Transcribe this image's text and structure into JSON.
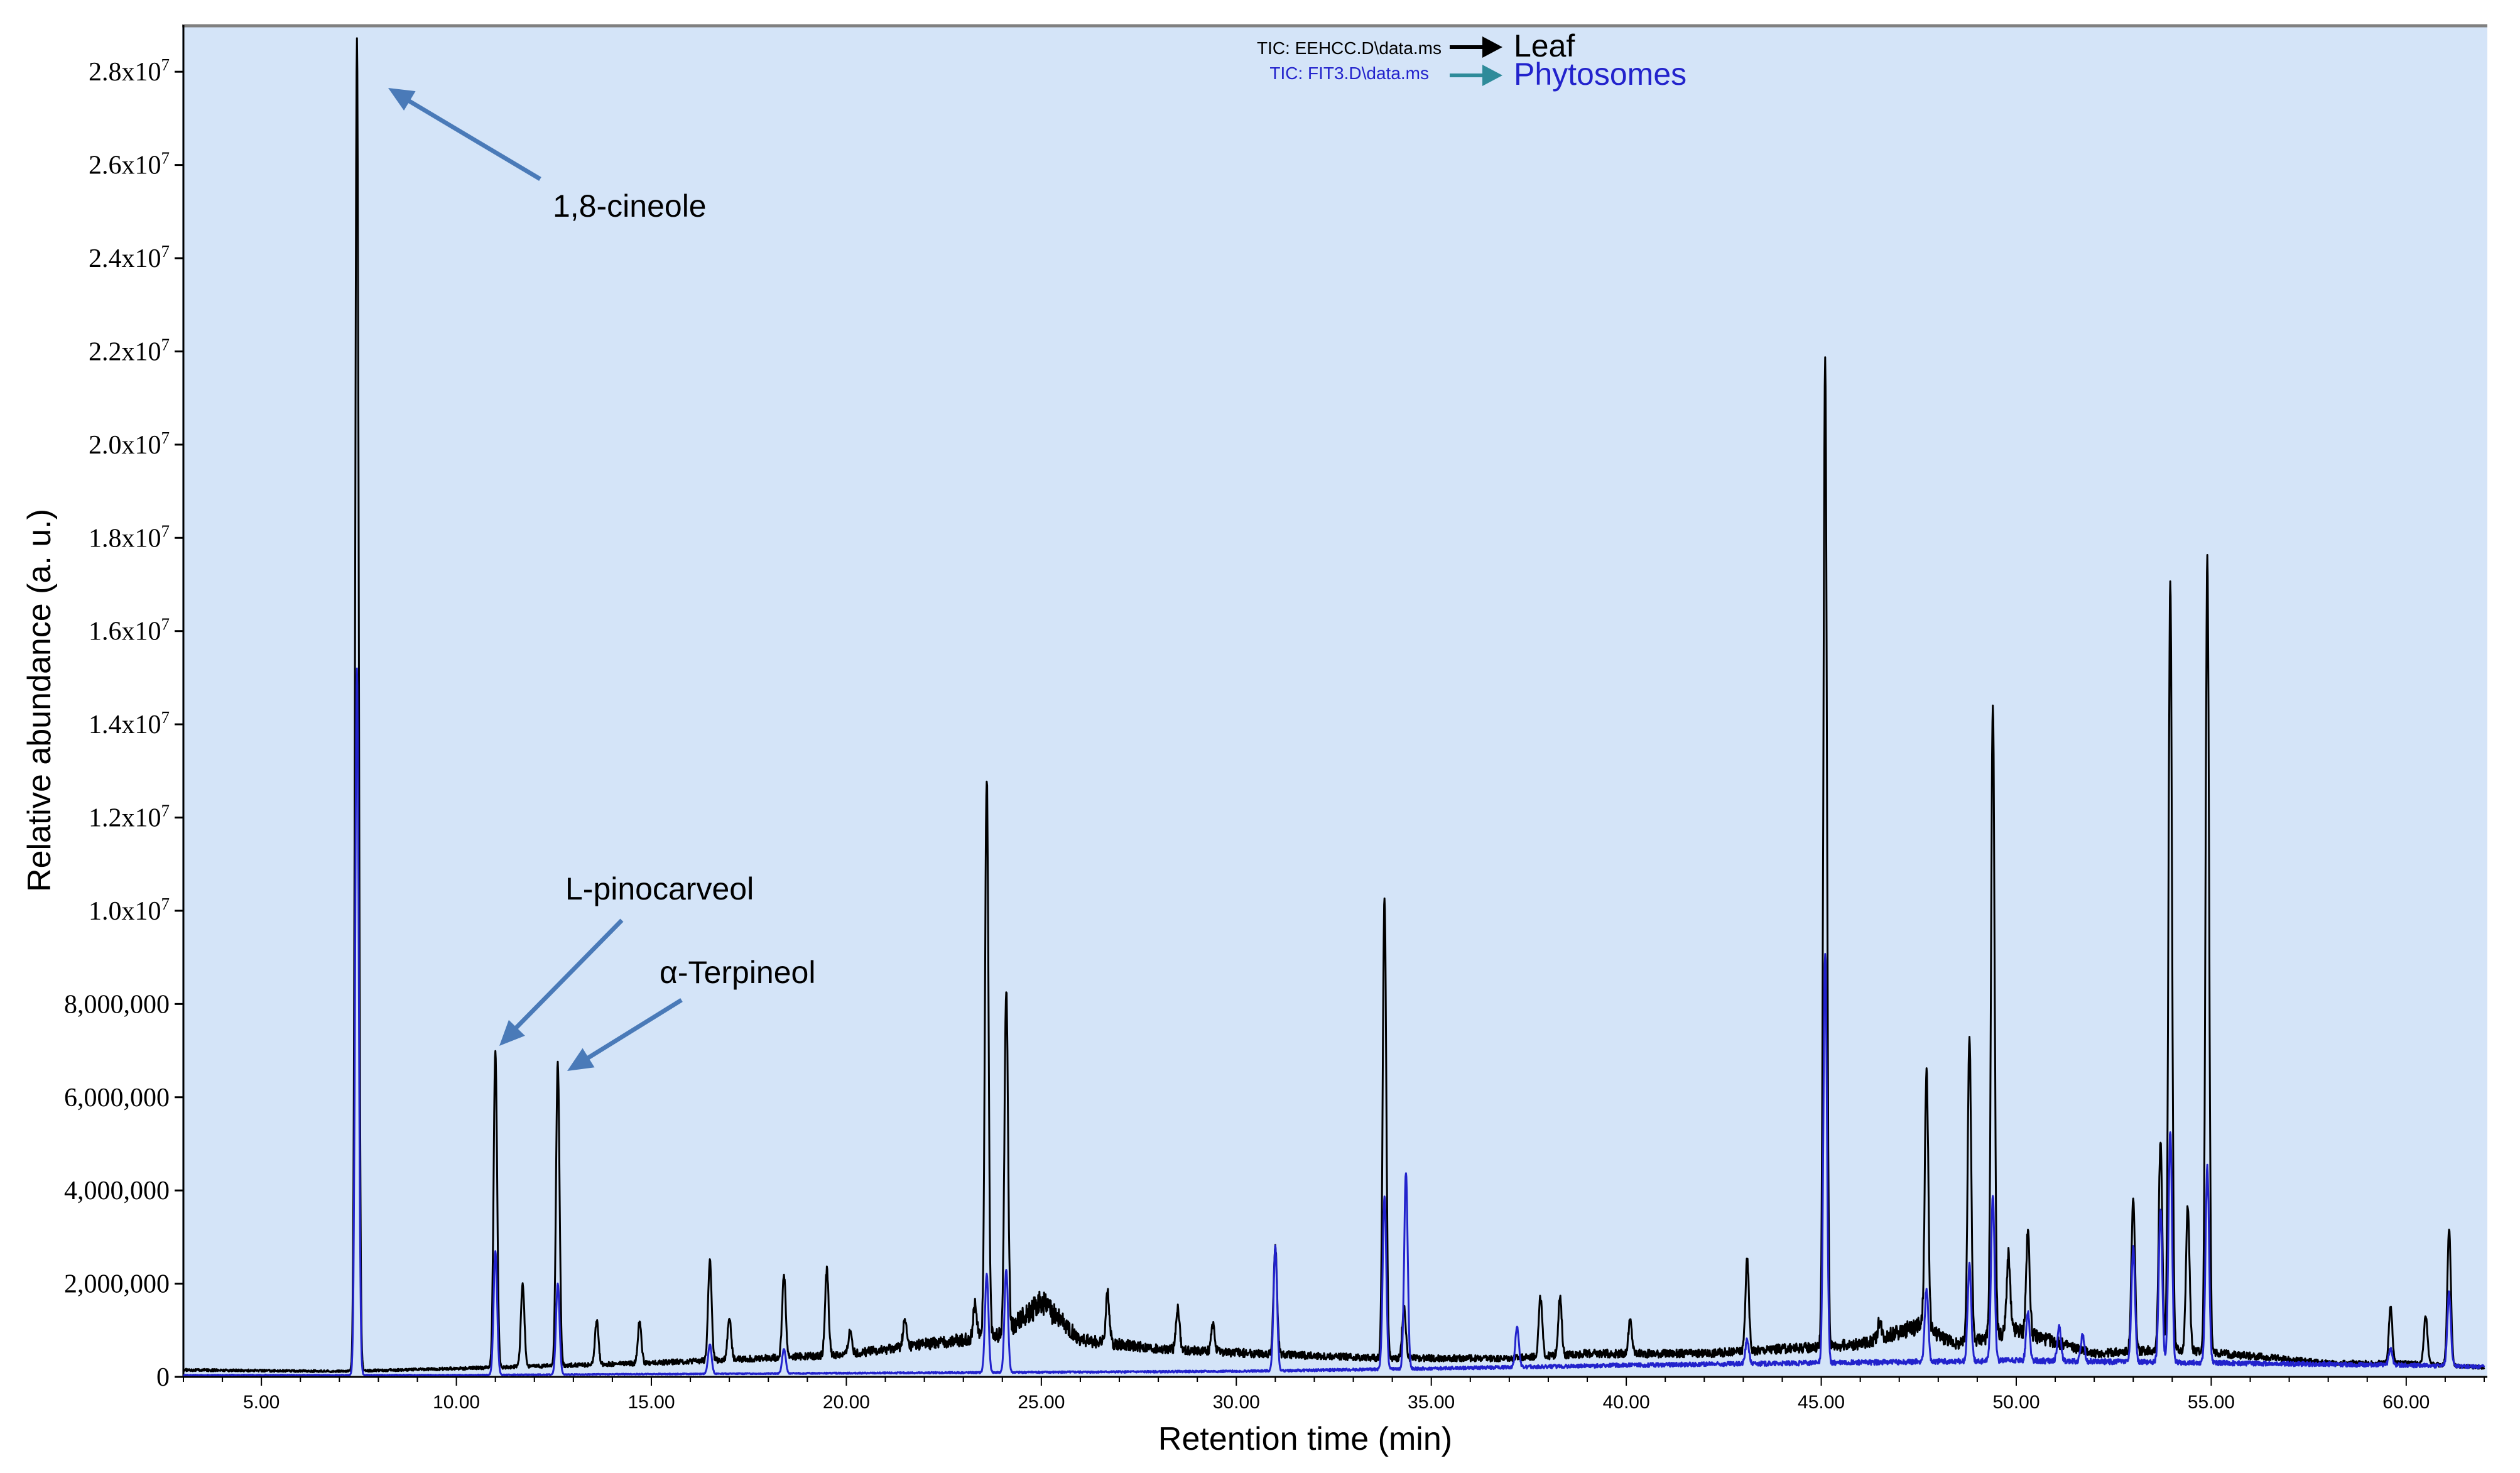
{
  "chart_data": {
    "type": "line",
    "xlabel": "Retention time (min)",
    "ylabel": "Relative abundance (a. u.)",
    "xlim": [
      3.0,
      62.0
    ],
    "ylim": [
      0,
      29000000
    ],
    "grid": false,
    "legend_position": "top-center",
    "background_color": "#d4e4f8",
    "x_ticks": [
      5,
      10,
      15,
      20,
      25,
      30,
      35,
      40,
      45,
      50,
      55,
      60
    ],
    "x_tick_labels": [
      "5.00",
      "10.00",
      "15.00",
      "20.00",
      "25.00",
      "30.00",
      "35.00",
      "40.00",
      "45.00",
      "50.00",
      "55.00",
      "60.00"
    ],
    "y_ticks": [
      {
        "value": 0,
        "base": "0",
        "exp": ""
      },
      {
        "value": 2000000,
        "base": "2,000,000",
        "exp": ""
      },
      {
        "value": 4000000,
        "base": "4,000,000",
        "exp": ""
      },
      {
        "value": 6000000,
        "base": "6,000,000",
        "exp": ""
      },
      {
        "value": 8000000,
        "base": "8,000,000",
        "exp": ""
      },
      {
        "value": 10000000,
        "base": "1.0x10",
        "exp": "7"
      },
      {
        "value": 12000000,
        "base": "1.2x10",
        "exp": "7"
      },
      {
        "value": 14000000,
        "base": "1.4x10",
        "exp": "7"
      },
      {
        "value": 16000000,
        "base": "1.6x10",
        "exp": "7"
      },
      {
        "value": 18000000,
        "base": "1.8x10",
        "exp": "7"
      },
      {
        "value": 20000000,
        "base": "2.0x10",
        "exp": "7"
      },
      {
        "value": 22000000,
        "base": "2.2x10",
        "exp": "7"
      },
      {
        "value": 24000000,
        "base": "2.4x10",
        "exp": "7"
      },
      {
        "value": 26000000,
        "base": "2.6x10",
        "exp": "7"
      },
      {
        "value": 28000000,
        "base": "2.8x10",
        "exp": "7"
      }
    ],
    "legend": [
      {
        "file_label": "TIC: EEHCC.D\\data.ms",
        "name": "Leaf",
        "color": "#000000",
        "arrow_color": "#000000"
      },
      {
        "file_label": "TIC: FIT3.D\\data.ms",
        "name": "Phytosomes",
        "color": "#2222cc",
        "arrow_color": "#2e8b9a"
      }
    ],
    "annotations": [
      {
        "text": "1,8-cineole",
        "x": 7.5,
        "y": 28700000
      },
      {
        "text": "L-pinocarveol",
        "x": 10.95,
        "y": 7050000
      },
      {
        "text": "α-Terpineol",
        "x": 12.6,
        "y": 6800000
      }
    ],
    "series": [
      {
        "name": "Leaf",
        "color": "#000000",
        "baseline": [
          [
            3,
            150000
          ],
          [
            7,
            120000
          ],
          [
            10,
            180000
          ],
          [
            15,
            300000
          ],
          [
            20,
            480000
          ],
          [
            22,
            700000
          ],
          [
            24,
            900000
          ],
          [
            25,
            1600000
          ],
          [
            26,
            800000
          ],
          [
            28,
            600000
          ],
          [
            30,
            520000
          ],
          [
            32,
            450000
          ],
          [
            34,
            400000
          ],
          [
            37,
            400000
          ],
          [
            39,
            500000
          ],
          [
            42,
            500000
          ],
          [
            44,
            600000
          ],
          [
            46,
            700000
          ],
          [
            47.5,
            1100000
          ],
          [
            48.5,
            700000
          ],
          [
            50,
            1000000
          ],
          [
            52,
            500000
          ],
          [
            54,
            600000
          ],
          [
            56,
            450000
          ],
          [
            58,
            300000
          ],
          [
            60,
            300000
          ],
          [
            62,
            200000
          ]
        ],
        "peaks": [
          [
            7.45,
            28700000
          ],
          [
            11.0,
            7000000
          ],
          [
            11.7,
            2000000
          ],
          [
            12.6,
            6750000
          ],
          [
            13.6,
            1200000
          ],
          [
            14.7,
            1200000
          ],
          [
            16.5,
            2500000
          ],
          [
            17.0,
            1300000
          ],
          [
            18.4,
            2200000
          ],
          [
            19.5,
            2300000
          ],
          [
            20.1,
            1000000
          ],
          [
            21.5,
            1200000
          ],
          [
            23.3,
            1600000
          ],
          [
            23.6,
            12900000
          ],
          [
            24.1,
            8400000
          ],
          [
            26.7,
            1800000
          ],
          [
            28.5,
            1500000
          ],
          [
            29.4,
            1100000
          ],
          [
            31.0,
            2800000
          ],
          [
            33.8,
            10300000
          ],
          [
            34.3,
            1500000
          ],
          [
            37.8,
            1700000
          ],
          [
            38.3,
            1700000
          ],
          [
            40.1,
            1200000
          ],
          [
            43.1,
            2500000
          ],
          [
            45.1,
            21800000
          ],
          [
            46.5,
            1200000
          ],
          [
            47.7,
            6500000
          ],
          [
            48.8,
            7300000
          ],
          [
            49.4,
            14500000
          ],
          [
            49.8,
            2600000
          ],
          [
            50.3,
            3100000
          ],
          [
            53.0,
            3800000
          ],
          [
            53.7,
            5100000
          ],
          [
            53.95,
            17100000
          ],
          [
            54.4,
            3700000
          ],
          [
            54.9,
            17600000
          ],
          [
            59.6,
            1500000
          ],
          [
            60.5,
            1300000
          ],
          [
            61.1,
            3200000
          ]
        ]
      },
      {
        "name": "Phytosomes",
        "color": "#2222cc",
        "baseline": [
          [
            3,
            40000
          ],
          [
            10,
            40000
          ],
          [
            20,
            80000
          ],
          [
            30,
            120000
          ],
          [
            35,
            180000
          ],
          [
            40,
            250000
          ],
          [
            45,
            300000
          ],
          [
            50,
            350000
          ],
          [
            55,
            300000
          ],
          [
            60,
            250000
          ],
          [
            62,
            220000
          ]
        ],
        "peaks": [
          [
            7.45,
            15200000
          ],
          [
            11.0,
            2700000
          ],
          [
            12.6,
            2000000
          ],
          [
            16.5,
            700000
          ],
          [
            18.4,
            600000
          ],
          [
            23.6,
            2200000
          ],
          [
            24.1,
            2300000
          ],
          [
            31.0,
            2800000
          ],
          [
            33.8,
            3900000
          ],
          [
            34.35,
            4400000
          ],
          [
            37.2,
            1100000
          ],
          [
            43.1,
            800000
          ],
          [
            45.1,
            9100000
          ],
          [
            47.7,
            1900000
          ],
          [
            48.8,
            2400000
          ],
          [
            49.4,
            3900000
          ],
          [
            50.3,
            1400000
          ],
          [
            51.1,
            1100000
          ],
          [
            51.7,
            900000
          ],
          [
            53.0,
            2800000
          ],
          [
            53.7,
            3600000
          ],
          [
            53.95,
            5300000
          ],
          [
            54.9,
            4500000
          ],
          [
            59.6,
            600000
          ],
          [
            61.1,
            1800000
          ]
        ]
      }
    ]
  }
}
